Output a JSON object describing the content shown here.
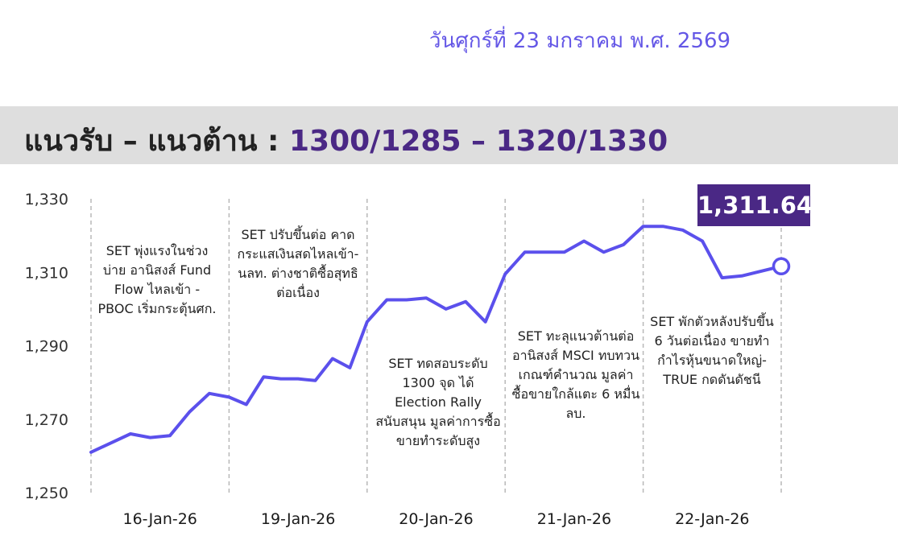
{
  "date_text": "วันศุกร์ที่ 23 มกราคม พ.ศ. 2569",
  "banner": {
    "label": "แนวรับ – แนวต้าน : ",
    "levels": "1300/1285 – 1320/1330"
  },
  "last_price_label": "1,311.64",
  "colors": {
    "line": "#5b50ec",
    "accent": "#4a2885",
    "banner_bg": "#dedede",
    "date_text": "#6457e6"
  },
  "annotations": [
    "SET พุ่งแรงในช่วงบ่าย อานิสงส์ Fund Flow ไหลเข้า - PBOC เริ่มกระตุ้นศก.",
    "SET ปรับขึ้นต่อ คาดกระแสเงินสดไหลเข้า-นลท. ต่างชาติซื้อสุทธิต่อเนื่อง",
    "SET ทดสอบระดับ 1300 จุด ได้ Election Rally สนับสนุน มูลค่าการซื้อขายทำระดับสูง",
    "SET ทะลุแนวต้านต่ออานิสงส์ MSCI ทบทวนเกณฑ์คำนวณ มูลค่าซื้อขายใกล้แตะ 6 หมื่นลบ.",
    "SET พักตัวหลังปรับขึ้น 6 วันต่อเนื่อง ขายทำกำไรหุ้นขนาดใหญ่-TRUE กดดันดัชนี"
  ],
  "chart_data": {
    "type": "line",
    "title": "",
    "xlabel": "",
    "ylabel": "",
    "ylim": [
      1250,
      1330
    ],
    "y_ticks": [
      1250,
      1270,
      1290,
      1310,
      1330
    ],
    "y_tick_labels": [
      "1,250",
      "1,270",
      "1,290",
      "1,310",
      "1,330"
    ],
    "categories": [
      "16-Jan-26",
      "19-Jan-26",
      "20-Jan-26",
      "21-Jan-26",
      "22-Jan-26"
    ],
    "grid": "vertical dashed separators between days",
    "series": [
      {
        "values": [
          [
            1261.0,
            1263.5,
            1266.0,
            1265.0,
            1265.5,
            1272.0,
            1277.0
          ],
          [
            1276.0,
            1274.0,
            1281.5,
            1281.0,
            1281.0,
            1280.5,
            1286.5,
            1284.0
          ],
          [
            1296.5,
            1302.5,
            1302.5,
            1303.0,
            1300.0,
            1302.0,
            1296.5
          ],
          [
            1309.5,
            1315.5,
            1315.5,
            1315.5,
            1318.5,
            1315.5,
            1317.5
          ],
          [
            1322.5,
            1322.5,
            1321.5,
            1318.5,
            1308.5,
            1309.0,
            1311.64
          ]
        ]
      }
    ]
  }
}
